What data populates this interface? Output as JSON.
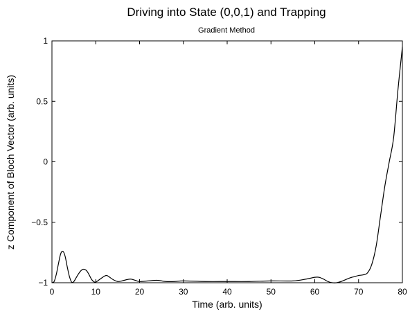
{
  "chart_data": {
    "type": "line",
    "title": "Driving into State (0,0,1) and Trapping",
    "subtitle": "Gradient Method",
    "xlabel": "Time (arb. units)",
    "ylabel": "z Component of Bloch Vector (arb. units)",
    "xlim": [
      0,
      80
    ],
    "ylim": [
      -1,
      1
    ],
    "xticks": [
      0,
      10,
      20,
      30,
      40,
      50,
      60,
      70,
      80
    ],
    "yticks": [
      -1,
      -0.5,
      0,
      0.5,
      1
    ],
    "xtick_labels": [
      "0",
      "10",
      "20",
      "30",
      "40",
      "50",
      "60",
      "70",
      "80"
    ],
    "ytick_labels": [
      "−1",
      "−0.5",
      "0",
      "0.5",
      "1"
    ],
    "grid": false,
    "legend": "none",
    "series": [
      {
        "color": "#000000",
        "points": [
          [
            0,
            -1.0
          ],
          [
            0.5,
            -0.99
          ],
          [
            1,
            -0.93
          ],
          [
            1.5,
            -0.84
          ],
          [
            2,
            -0.76
          ],
          [
            2.5,
            -0.74
          ],
          [
            3,
            -0.78
          ],
          [
            3.5,
            -0.87
          ],
          [
            4,
            -0.95
          ],
          [
            4.5,
            -0.995
          ],
          [
            5,
            -0.99
          ],
          [
            5.5,
            -0.96
          ],
          [
            6,
            -0.93
          ],
          [
            6.5,
            -0.905
          ],
          [
            7,
            -0.89
          ],
          [
            7.5,
            -0.89
          ],
          [
            8,
            -0.905
          ],
          [
            8.5,
            -0.935
          ],
          [
            9,
            -0.97
          ],
          [
            9.5,
            -0.99
          ],
          [
            10,
            -0.995
          ],
          [
            11,
            -0.97
          ],
          [
            12,
            -0.945
          ],
          [
            12.5,
            -0.94
          ],
          [
            13,
            -0.95
          ],
          [
            14,
            -0.975
          ],
          [
            15,
            -0.99
          ],
          [
            16,
            -0.985
          ],
          [
            17,
            -0.975
          ],
          [
            18,
            -0.97
          ],
          [
            19,
            -0.98
          ],
          [
            20,
            -0.99
          ],
          [
            22,
            -0.985
          ],
          [
            24,
            -0.98
          ],
          [
            26,
            -0.99
          ],
          [
            28,
            -0.99
          ],
          [
            30,
            -0.985
          ],
          [
            35,
            -0.99
          ],
          [
            40,
            -0.99
          ],
          [
            45,
            -0.99
          ],
          [
            50,
            -0.985
          ],
          [
            55,
            -0.985
          ],
          [
            58,
            -0.97
          ],
          [
            60,
            -0.955
          ],
          [
            61,
            -0.955
          ],
          [
            62,
            -0.97
          ],
          [
            63,
            -0.99
          ],
          [
            64,
            -1.0
          ],
          [
            65,
            -1.0
          ],
          [
            66,
            -0.99
          ],
          [
            67,
            -0.975
          ],
          [
            68,
            -0.96
          ],
          [
            69,
            -0.95
          ],
          [
            70,
            -0.94
          ],
          [
            71,
            -0.935
          ],
          [
            72,
            -0.92
          ],
          [
            73,
            -0.85
          ],
          [
            74,
            -0.7
          ],
          [
            75,
            -0.45
          ],
          [
            76,
            -0.2
          ],
          [
            77,
            0.0
          ],
          [
            78,
            0.2
          ],
          [
            79,
            0.6
          ],
          [
            80,
            0.95
          ]
        ]
      }
    ]
  }
}
